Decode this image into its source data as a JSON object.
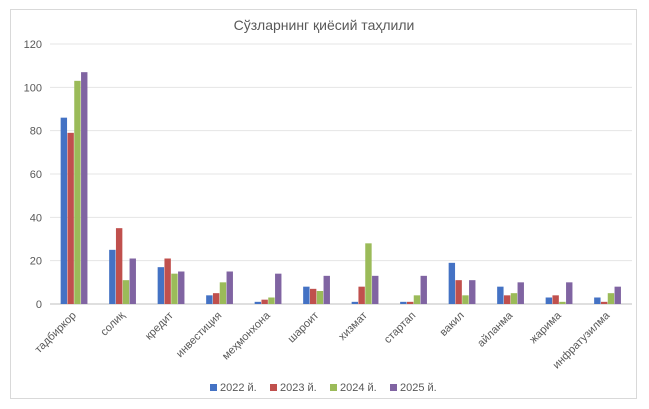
{
  "chart_data": {
    "type": "bar",
    "title": "Сўзларнинг қиёсий таҳлили",
    "xlabel": "",
    "ylabel": "",
    "ylim": [
      0,
      120
    ],
    "yticks": [
      0,
      20,
      40,
      60,
      80,
      100,
      120
    ],
    "grid": true,
    "legend_position": "bottom",
    "categories": [
      "тадбиркор",
      "солиқ",
      "кредит",
      "инвестиция",
      "меҳмонхона",
      "шароит",
      "хизмат",
      "стартап",
      "вакил",
      "айланма",
      "жарима",
      "инфратузилма"
    ],
    "series": [
      {
        "name": "2022 й.",
        "color": "#4472C4",
        "values": [
          86,
          25,
          17,
          4,
          1,
          8,
          1,
          1,
          19,
          8,
          3,
          3
        ]
      },
      {
        "name": "2023 й.",
        "color": "#C0504D",
        "values": [
          79,
          35,
          21,
          5,
          2,
          7,
          8,
          1,
          11,
          4,
          4,
          1
        ]
      },
      {
        "name": "2024 й.",
        "color": "#9BBB59",
        "values": [
          103,
          11,
          14,
          10,
          3,
          6,
          28,
          4,
          4,
          5,
          1,
          5
        ]
      },
      {
        "name": "2025 й.",
        "color": "#8064A2",
        "values": [
          107,
          21,
          15,
          15,
          14,
          13,
          13,
          13,
          11,
          10,
          10,
          8
        ]
      }
    ]
  }
}
